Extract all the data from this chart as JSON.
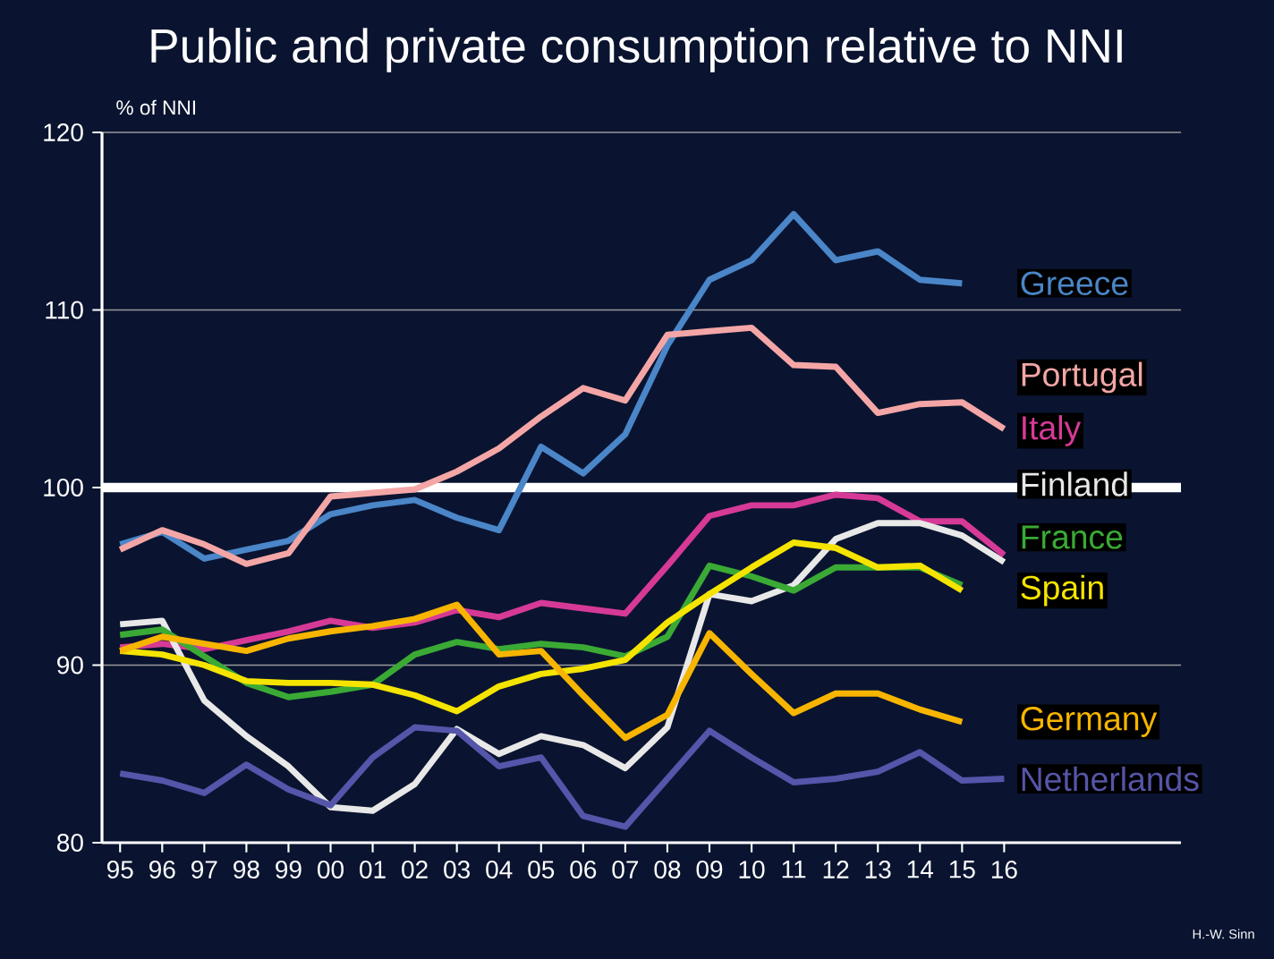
{
  "chart_data": {
    "type": "line",
    "title": "Public and private consumption relative to NNI",
    "ylabel": "% of NNI",
    "categories": [
      "95",
      "96",
      "97",
      "98",
      "99",
      "00",
      "01",
      "02",
      "03",
      "04",
      "05",
      "06",
      "07",
      "08",
      "09",
      "10",
      "11",
      "12",
      "13",
      "14",
      "15",
      "16"
    ],
    "ylim": [
      80,
      120
    ],
    "yticks": [
      80,
      90,
      100,
      110,
      120
    ],
    "grid": "y",
    "ref_lines": [
      {
        "axis": "y",
        "value": 100,
        "color": "#ffffff"
      }
    ],
    "series": [
      {
        "name": "Greece",
        "color": "#4a86c8",
        "values": [
          96.8,
          97.5,
          96.0,
          96.5,
          97.0,
          98.5,
          99.0,
          99.3,
          98.3,
          97.6,
          102.3,
          100.8,
          103.0,
          108.0,
          111.7,
          112.8,
          115.4,
          112.8,
          113.3,
          111.7,
          111.5,
          null
        ]
      },
      {
        "name": "Portugal",
        "color": "#f4a6a6",
        "values": [
          96.5,
          97.6,
          96.8,
          95.7,
          96.3,
          99.5,
          99.7,
          99.9,
          100.9,
          102.2,
          104.0,
          105.6,
          104.9,
          108.6,
          108.8,
          109.0,
          106.9,
          106.8,
          104.2,
          104.7,
          104.8,
          103.3
        ]
      },
      {
        "name": "Italy",
        "color": "#d63a96",
        "values": [
          91.0,
          91.2,
          90.9,
          91.4,
          91.9,
          92.5,
          92.1,
          92.4,
          93.1,
          92.7,
          93.5,
          93.2,
          92.9,
          95.6,
          98.4,
          99.0,
          99.0,
          99.6,
          99.4,
          98.1,
          98.1,
          96.2
        ]
      },
      {
        "name": "Finland",
        "color": "#e8e8e8",
        "values": [
          92.3,
          92.5,
          88.0,
          86.0,
          84.3,
          82.0,
          81.8,
          83.3,
          86.4,
          85.0,
          86.0,
          85.5,
          84.2,
          86.5,
          94.0,
          93.6,
          94.5,
          97.1,
          98.0,
          98.0,
          97.3,
          95.8
        ]
      },
      {
        "name": "France",
        "color": "#3aaa35",
        "values": [
          91.7,
          92.0,
          90.5,
          89.0,
          88.2,
          88.5,
          88.9,
          90.6,
          91.3,
          90.9,
          91.2,
          91.0,
          90.5,
          91.6,
          95.6,
          95.0,
          94.2,
          95.5,
          95.5,
          95.5,
          94.5,
          null
        ]
      },
      {
        "name": "Spain",
        "color": "#f5e400",
        "values": [
          90.8,
          90.6,
          90.0,
          89.1,
          89.0,
          89.0,
          88.9,
          88.3,
          87.4,
          88.8,
          89.5,
          89.8,
          90.3,
          92.4,
          94.0,
          95.5,
          96.9,
          96.6,
          95.5,
          95.6,
          94.2,
          null
        ]
      },
      {
        "name": "Germany",
        "color": "#f7b500",
        "values": [
          90.8,
          91.6,
          91.2,
          90.8,
          91.5,
          91.9,
          92.2,
          92.6,
          93.4,
          90.6,
          90.8,
          88.3,
          85.9,
          87.2,
          91.8,
          89.5,
          87.3,
          88.4,
          88.4,
          87.5,
          86.8,
          null
        ]
      },
      {
        "name": "Netherlands",
        "color": "#5555aa",
        "values": [
          83.9,
          83.5,
          82.8,
          84.4,
          83.0,
          82.1,
          84.8,
          86.5,
          86.3,
          84.3,
          84.8,
          81.5,
          80.9,
          83.6,
          86.3,
          84.8,
          83.4,
          83.6,
          84.0,
          85.1,
          83.5,
          83.6
        ]
      }
    ],
    "annotations": [
      "H.-W. Sinn"
    ]
  }
}
